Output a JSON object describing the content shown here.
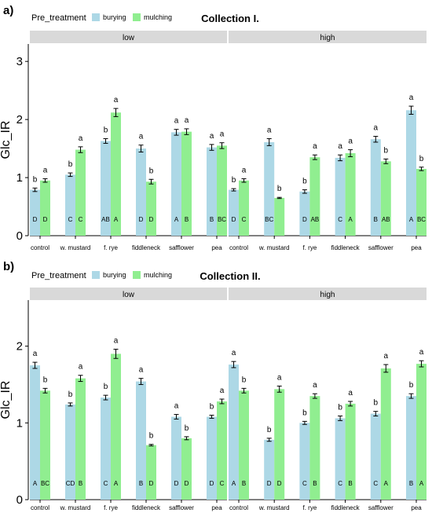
{
  "chart_data": [
    {
      "type": "bar",
      "panel_label": "a)",
      "title": "Collection I.",
      "ylabel": "Glc_IR",
      "ylim": [
        0,
        3.3
      ],
      "yticks": [
        0,
        1,
        2,
        3
      ],
      "legend": {
        "title": "Pre_treatment",
        "items": [
          "burying",
          "mulching"
        ]
      },
      "categories": [
        "control",
        "w. mustard",
        "f. rye",
        "fiddleneck",
        "safflower",
        "pea"
      ],
      "facets": [
        {
          "name": "low",
          "series": [
            {
              "name": "burying",
              "values": [
                0.79,
                1.05,
                1.63,
                1.5,
                1.78,
                1.52
              ],
              "errors": [
                0.03,
                0.03,
                0.04,
                0.06,
                0.05,
                0.05
              ],
              "top_letters": [
                "b",
                "b",
                "b",
                "a",
                "a",
                "a"
              ],
              "inner_letters": [
                "D",
                "C",
                "AB",
                "D",
                "A",
                "B"
              ]
            },
            {
              "name": "mulching",
              "values": [
                0.95,
                1.48,
                2.12,
                0.93,
                1.79,
                1.55
              ],
              "errors": [
                0.03,
                0.05,
                0.07,
                0.04,
                0.05,
                0.05
              ],
              "top_letters": [
                "a",
                "a",
                "a",
                "b",
                "a",
                "a"
              ],
              "inner_letters": [
                "D",
                "C",
                "A",
                "D",
                "B",
                "BC"
              ]
            }
          ]
        },
        {
          "name": "high",
          "series": [
            {
              "name": "burying",
              "values": [
                0.79,
                1.61,
                0.76,
                1.34,
                1.66,
                2.16
              ],
              "errors": [
                0.02,
                0.06,
                0.03,
                0.05,
                0.05,
                0.07
              ],
              "top_letters": [
                "b",
                "a",
                "b",
                "a",
                "a",
                "a"
              ],
              "inner_letters": [
                "D",
                "BC",
                "D",
                "C",
                "B",
                "A"
              ]
            },
            {
              "name": "mulching",
              "values": [
                0.95,
                0.65,
                1.35,
                1.42,
                1.28,
                1.15
              ],
              "errors": [
                0.03,
                0.01,
                0.04,
                0.06,
                0.04,
                0.03
              ],
              "top_letters": [
                "a",
                "b",
                "a",
                "a",
                "b",
                "b"
              ],
              "inner_letters": [
                "C",
                "",
                "AB",
                "A",
                "AB",
                "BC"
              ]
            }
          ]
        }
      ]
    },
    {
      "type": "bar",
      "panel_label": "b)",
      "title": "Collection II.",
      "ylabel": "Glc_IR",
      "ylim": [
        0,
        2.6
      ],
      "yticks": [
        0,
        1,
        2
      ],
      "legend": {
        "title": "Pre_treatment",
        "items": [
          "burying",
          "mulching"
        ]
      },
      "categories": [
        "control",
        "w. mustard",
        "f. rye",
        "fiddleneck",
        "safflower",
        "pea"
      ],
      "facets": [
        {
          "name": "low",
          "series": [
            {
              "name": "burying",
              "values": [
                1.75,
                1.24,
                1.33,
                1.54,
                1.08,
                1.08
              ],
              "errors": [
                0.04,
                0.02,
                0.03,
                0.04,
                0.03,
                0.02
              ],
              "top_letters": [
                "a",
                "b",
                "b",
                "a",
                "a",
                "b"
              ],
              "inner_letters": [
                "A",
                "CD",
                "C",
                "B",
                "D",
                "D"
              ]
            },
            {
              "name": "mulching",
              "values": [
                1.42,
                1.58,
                1.9,
                0.71,
                0.8,
                1.28
              ],
              "errors": [
                0.03,
                0.04,
                0.06,
                0.01,
                0.02,
                0.03
              ],
              "top_letters": [
                "b",
                "a",
                "a",
                "b",
                "b",
                "a"
              ],
              "inner_letters": [
                "BC",
                "B",
                "A",
                "D",
                "D",
                "C"
              ]
            }
          ]
        },
        {
          "name": "high",
          "series": [
            {
              "name": "burying",
              "values": [
                1.76,
                0.78,
                1.0,
                1.06,
                1.12,
                1.35
              ],
              "errors": [
                0.04,
                0.02,
                0.02,
                0.03,
                0.03,
                0.03
              ],
              "top_letters": [
                "a",
                "b",
                "b",
                "b",
                "b",
                "b"
              ],
              "inner_letters": [
                "A",
                "D",
                "C",
                "C",
                "C",
                "B"
              ]
            },
            {
              "name": "mulching",
              "values": [
                1.42,
                1.44,
                1.35,
                1.25,
                1.71,
                1.77
              ],
              "errors": [
                0.03,
                0.04,
                0.03,
                0.03,
                0.05,
                0.04
              ],
              "top_letters": [
                "b",
                "a",
                "a",
                "a",
                "a",
                "a"
              ],
              "inner_letters": [
                "B",
                "D",
                "B",
                "B",
                "A",
                "A"
              ]
            }
          ]
        }
      ]
    }
  ],
  "colors": {
    "burying": "#add8e6",
    "mulching": "#90ee90",
    "strip": "#d9d9d9"
  }
}
